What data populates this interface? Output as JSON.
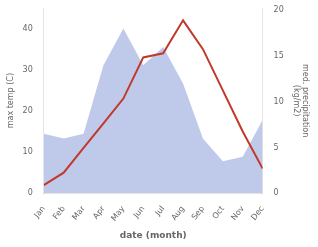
{
  "chart_data": {
    "type": "line",
    "categories": [
      "Jan",
      "Feb",
      "Mar",
      "Apr",
      "May",
      "Jun",
      "Jul",
      "Aug",
      "Sep",
      "Oct",
      "Nov",
      "Dec"
    ],
    "x_label": "date (month)",
    "y_label": "max temp (C)",
    "y2_label": "med. precipitation\n(kg/m2)",
    "series": [
      {
        "type": "area",
        "color": "#bfc9ea",
        "axis": "y2",
        "values": [
          6.5,
          6,
          6.5,
          14,
          18,
          14,
          16,
          12,
          6,
          3.5,
          4,
          8
        ]
      },
      {
        "type": "line",
        "color": "#c0392b",
        "values": [
          2,
          5,
          11,
          17,
          23,
          33,
          34,
          42,
          35,
          25,
          15,
          6
        ]
      }
    ],
    "ylim": [
      0,
      45
    ],
    "yticks": [
      0,
      10,
      20,
      30,
      40
    ],
    "y2lim": [
      0,
      20.25
    ],
    "y2ticks": [
      0,
      5,
      10,
      15,
      20
    ],
    "grid": false
  }
}
